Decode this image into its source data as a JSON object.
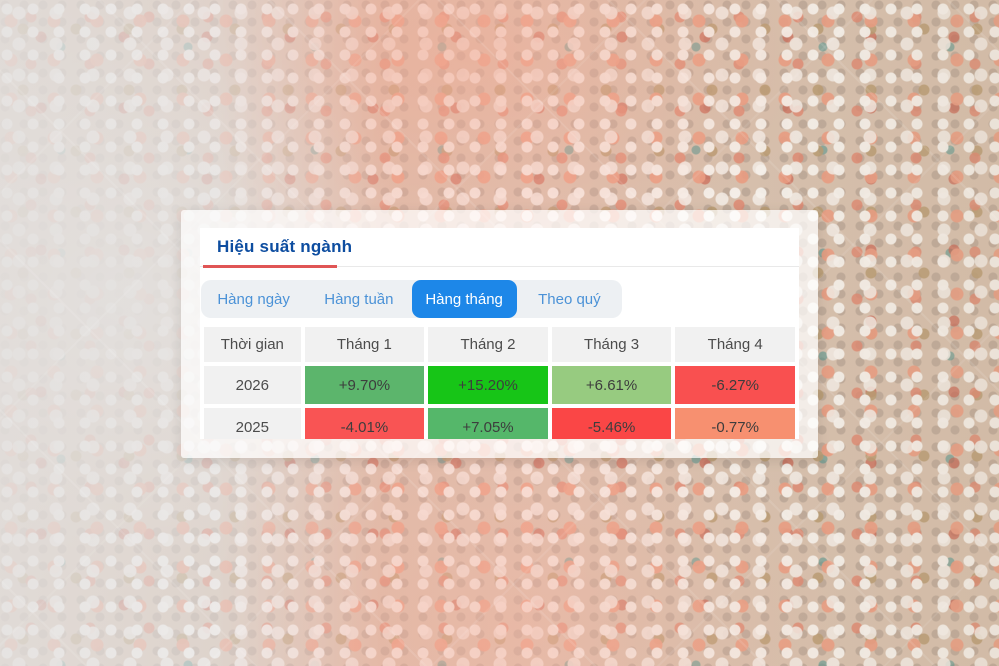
{
  "panel": {
    "title": "Hiệu suất ngành",
    "title_color": "#0d4da0",
    "accent_underline_color": "#e05555",
    "active_tab_color": "#1d87e8",
    "tabs": [
      {
        "label": "Hàng ngày",
        "active": false
      },
      {
        "label": "Hàng tuần",
        "active": false
      },
      {
        "label": "Hàng tháng",
        "active": true
      },
      {
        "label": "Theo quý",
        "active": false
      }
    ],
    "table": {
      "columns": [
        "Thời gian",
        "Tháng 1",
        "Tháng 2",
        "Tháng 3",
        "Tháng 4"
      ],
      "rows": [
        {
          "period": "2026",
          "cells": [
            {
              "value": "+9.70%",
              "color": "#5cb56c"
            },
            {
              "value": "+15.20%",
              "color": "#17c517"
            },
            {
              "value": "+6.61%",
              "color": "#97cb80"
            },
            {
              "value": "-6.27%",
              "color": "#f95050"
            }
          ]
        },
        {
          "period": "2025",
          "cells": [
            {
              "value": "-4.01%",
              "color": "#f95454"
            },
            {
              "value": "+7.05%",
              "color": "#55b76a"
            },
            {
              "value": "-5.46%",
              "color": "#fa4646"
            },
            {
              "value": "-0.77%",
              "color": "#f79070"
            }
          ]
        }
      ]
    }
  }
}
